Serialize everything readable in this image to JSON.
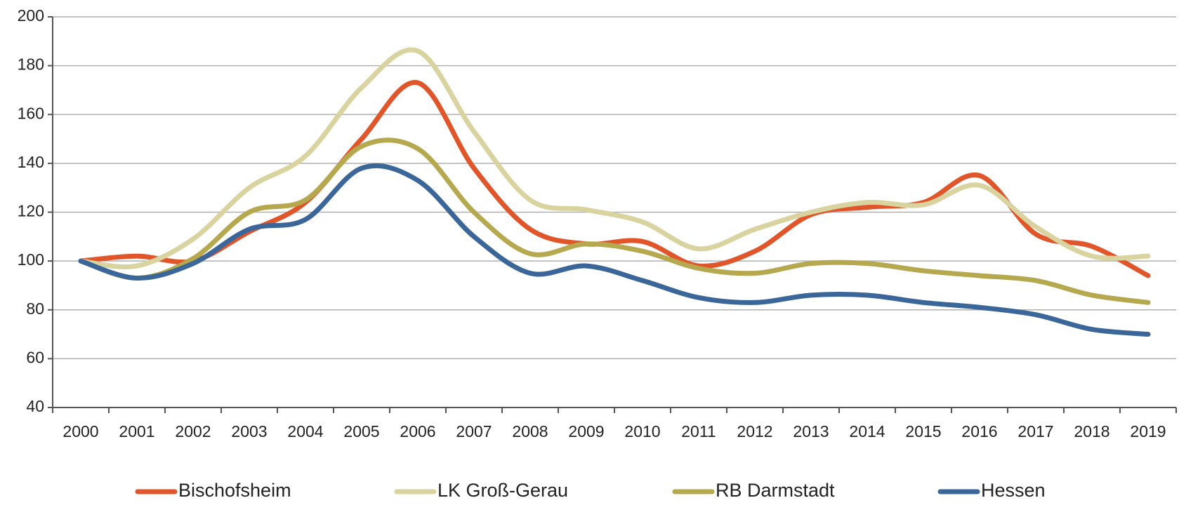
{
  "chart_data": {
    "type": "line",
    "categories": [
      "2000",
      "2001",
      "2002",
      "2003",
      "2004",
      "2005",
      "2006",
      "2007",
      "2008",
      "2009",
      "2010",
      "2011",
      "2012",
      "2013",
      "2014",
      "2015",
      "2016",
      "2017",
      "2018",
      "2019"
    ],
    "series": [
      {
        "name": "Bischofsheim",
        "color": "#e0562a",
        "values": [
          100,
          102,
          100,
          112,
          124,
          150,
          173,
          138,
          113,
          107,
          108,
          98,
          104,
          119,
          122,
          124,
          135,
          111,
          106,
          94
        ]
      },
      {
        "name": "LK Groß-Gerau",
        "color": "#d9d3a0",
        "values": [
          100,
          98,
          109,
          130,
          143,
          171,
          186,
          153,
          125,
          121,
          116,
          105,
          113,
          120,
          124,
          123,
          131,
          114,
          102,
          102
        ]
      },
      {
        "name": "RB Darmstadt",
        "color": "#b5a84e",
        "values": [
          100,
          93,
          101,
          120,
          125,
          147,
          146,
          120,
          103,
          107,
          104,
          97,
          95,
          99,
          99,
          96,
          94,
          92,
          86,
          83
        ]
      },
      {
        "name": "Hessen",
        "color": "#3b6699",
        "values": [
          100,
          93,
          99,
          113,
          117,
          138,
          133,
          110,
          95,
          98,
          92,
          85,
          83,
          86,
          86,
          83,
          81,
          78,
          72,
          70
        ]
      }
    ],
    "ylim": [
      40,
      200
    ],
    "yticks": [
      40,
      60,
      80,
      100,
      120,
      140,
      160,
      180,
      200
    ],
    "grid": true,
    "smooth": true,
    "legend": "bottom"
  }
}
